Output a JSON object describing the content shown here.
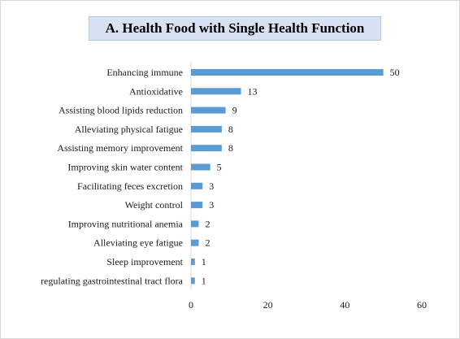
{
  "chart_data": {
    "type": "bar",
    "orientation": "horizontal",
    "title": "A. Health Food with Single Health Function",
    "xlabel": "",
    "ylabel": "",
    "categories": [
      "Enhancing immune",
      "Antioxidative",
      "Assisting blood lipids reduction",
      "Alleviating physical fatigue",
      "Assisting memory improvement",
      "Improving skin water content",
      "Facilitating feces excretion",
      "Weight control",
      "Improving nutritional anemia",
      "Alleviating eye fatigue",
      "Sleep improvement",
      "regulating gastrointestinal tract flora"
    ],
    "values": [
      50,
      13,
      9,
      8,
      8,
      5,
      3,
      3,
      2,
      2,
      1,
      1
    ],
    "xlim": [
      0,
      60
    ],
    "xticks": [
      0,
      20,
      40,
      60
    ],
    "grid": false,
    "legend": "none",
    "bar_color": "#5b9bd5"
  }
}
